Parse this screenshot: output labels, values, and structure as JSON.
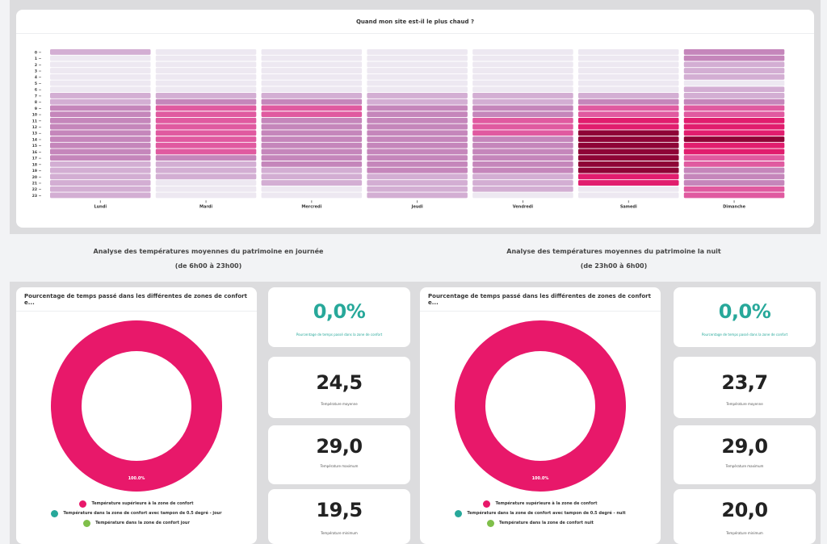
{
  "heatmap_card": {
    "title": "Quand mon site est-il le plus chaud ?"
  },
  "day_section": {
    "title": "Analyse des températures moyennes du patrimoine en journée",
    "subtitle": "(de 6h00 à 23h00)"
  },
  "night_section": {
    "title": "Analyse des températures moyennes du patrimoine la nuit",
    "subtitle": "(de 23h00 à 6h00)"
  },
  "day_panel": {
    "donut_title": "Pourcentage de temps passé dans les différentes de zones de confort e...",
    "donut_label": "100.0%",
    "legend": [
      {
        "label": "Température supérieure à la zone de confort",
        "color": "#e8186a"
      },
      {
        "label": "Température dans la zone de confort avec tampon de 0.5 degré - jour",
        "color": "#27a89a"
      },
      {
        "label": "Température dans la zone de confort jour",
        "color": "#7fbf4a"
      }
    ],
    "stats": [
      {
        "value": "0,0%",
        "label": "Pourcentage de temps passé dans la zone de confort"
      },
      {
        "value": "24,5",
        "label": "Température moyenne"
      },
      {
        "value": "29,0",
        "label": "Température maximum"
      },
      {
        "value": "19,5",
        "label": "Température minimum"
      }
    ]
  },
  "night_panel": {
    "donut_title": "Pourcentage de temps passé dans les différentes de zones de confort e...",
    "donut_label": "100.0%",
    "legend": [
      {
        "label": "Température supérieure à la zone de confort",
        "color": "#e8186a"
      },
      {
        "label": "Température dans la zone de confort avec tampon de 0.5 degré - nuit",
        "color": "#27a89a"
      },
      {
        "label": "Température dans la zone de confort nuit",
        "color": "#7fbf4a"
      }
    ],
    "stats": [
      {
        "value": "0,0%",
        "label": "Pourcentage de temps passé dans la zone de confort"
      },
      {
        "value": "23,7",
        "label": "Température moyenne"
      },
      {
        "value": "29,0",
        "label": "Température maximum"
      },
      {
        "value": "20,0",
        "label": "Température minimum"
      }
    ]
  },
  "chart_data": [
    {
      "type": "heatmap",
      "title": "Quand mon site est-il le plus chaud ?",
      "xlabel": "",
      "ylabel": "",
      "x": [
        "Lundi",
        "Mardi",
        "Mercredi",
        "Jeudi",
        "Vendredi",
        "Samedi",
        "Dimanche"
      ],
      "y": [
        "0",
        "1",
        "2",
        "3",
        "4",
        "5",
        "6",
        "7",
        "8",
        "9",
        "10",
        "11",
        "12",
        "13",
        "14",
        "15",
        "16",
        "17",
        "18",
        "19",
        "20",
        "21",
        "22",
        "23"
      ],
      "intensity_scale": {
        "levels": [
          0,
          1,
          2,
          3,
          4,
          5
        ],
        "colors": [
          "#ede8f1",
          "#d3aed3",
          "#c586bb",
          "#e05aa0",
          "#e11d6e",
          "#8e0436"
        ],
        "note": "relative heat level (0 = no data / coolest, 5 = hottest)"
      },
      "values": [
        [
          1,
          0,
          0,
          0,
          0,
          0,
          0,
          1,
          1,
          2,
          2,
          2,
          2,
          2,
          2,
          2,
          2,
          2,
          1,
          1,
          1,
          1,
          1,
          1
        ],
        [
          0,
          0,
          0,
          0,
          0,
          0,
          0,
          1,
          2,
          3,
          3,
          3,
          3,
          3,
          3,
          3,
          3,
          2,
          1,
          1,
          1,
          0,
          0,
          0
        ],
        [
          0,
          0,
          0,
          0,
          0,
          0,
          0,
          1,
          2,
          3,
          3,
          2,
          2,
          2,
          2,
          2,
          2,
          2,
          2,
          1,
          1,
          1,
          0,
          0
        ],
        [
          0,
          0,
          0,
          0,
          0,
          0,
          0,
          1,
          1,
          2,
          2,
          2,
          2,
          2,
          2,
          2,
          2,
          2,
          2,
          2,
          1,
          1,
          1,
          1
        ],
        [
          0,
          0,
          0,
          0,
          0,
          0,
          0,
          1,
          1,
          2,
          2,
          3,
          3,
          3,
          2,
          2,
          2,
          2,
          2,
          2,
          1,
          1,
          1,
          0
        ],
        [
          0,
          0,
          0,
          0,
          0,
          0,
          0,
          1,
          2,
          3,
          3,
          4,
          4,
          5,
          5,
          5,
          5,
          5,
          5,
          5,
          4,
          4,
          0,
          0
        ],
        [
          2,
          2,
          1,
          1,
          1,
          0,
          1,
          1,
          2,
          3,
          3,
          4,
          4,
          4,
          5,
          4,
          4,
          3,
          3,
          2,
          2,
          2,
          3,
          3
        ]
      ]
    },
    {
      "type": "pie",
      "title": "Pourcentage de temps passé dans les différentes de zones de confort (journée)",
      "categories": [
        "Température supérieure à la zone de confort",
        "Température dans la zone de confort avec tampon de 0.5 degré - jour",
        "Température dans la zone de confort jour"
      ],
      "values": [
        100.0,
        0.0,
        0.0
      ],
      "data_labels": [
        "100.0%"
      ],
      "legend": "bottom"
    },
    {
      "type": "pie",
      "title": "Pourcentage de temps passé dans les différentes de zones de confort (nuit)",
      "categories": [
        "Température supérieure à la zone de confort",
        "Température dans la zone de confort avec tampon de 0.5 degré - nuit",
        "Température dans la zone de confort nuit"
      ],
      "values": [
        100.0,
        0.0,
        0.0
      ],
      "data_labels": [
        "100.0%"
      ],
      "legend": "bottom"
    }
  ]
}
